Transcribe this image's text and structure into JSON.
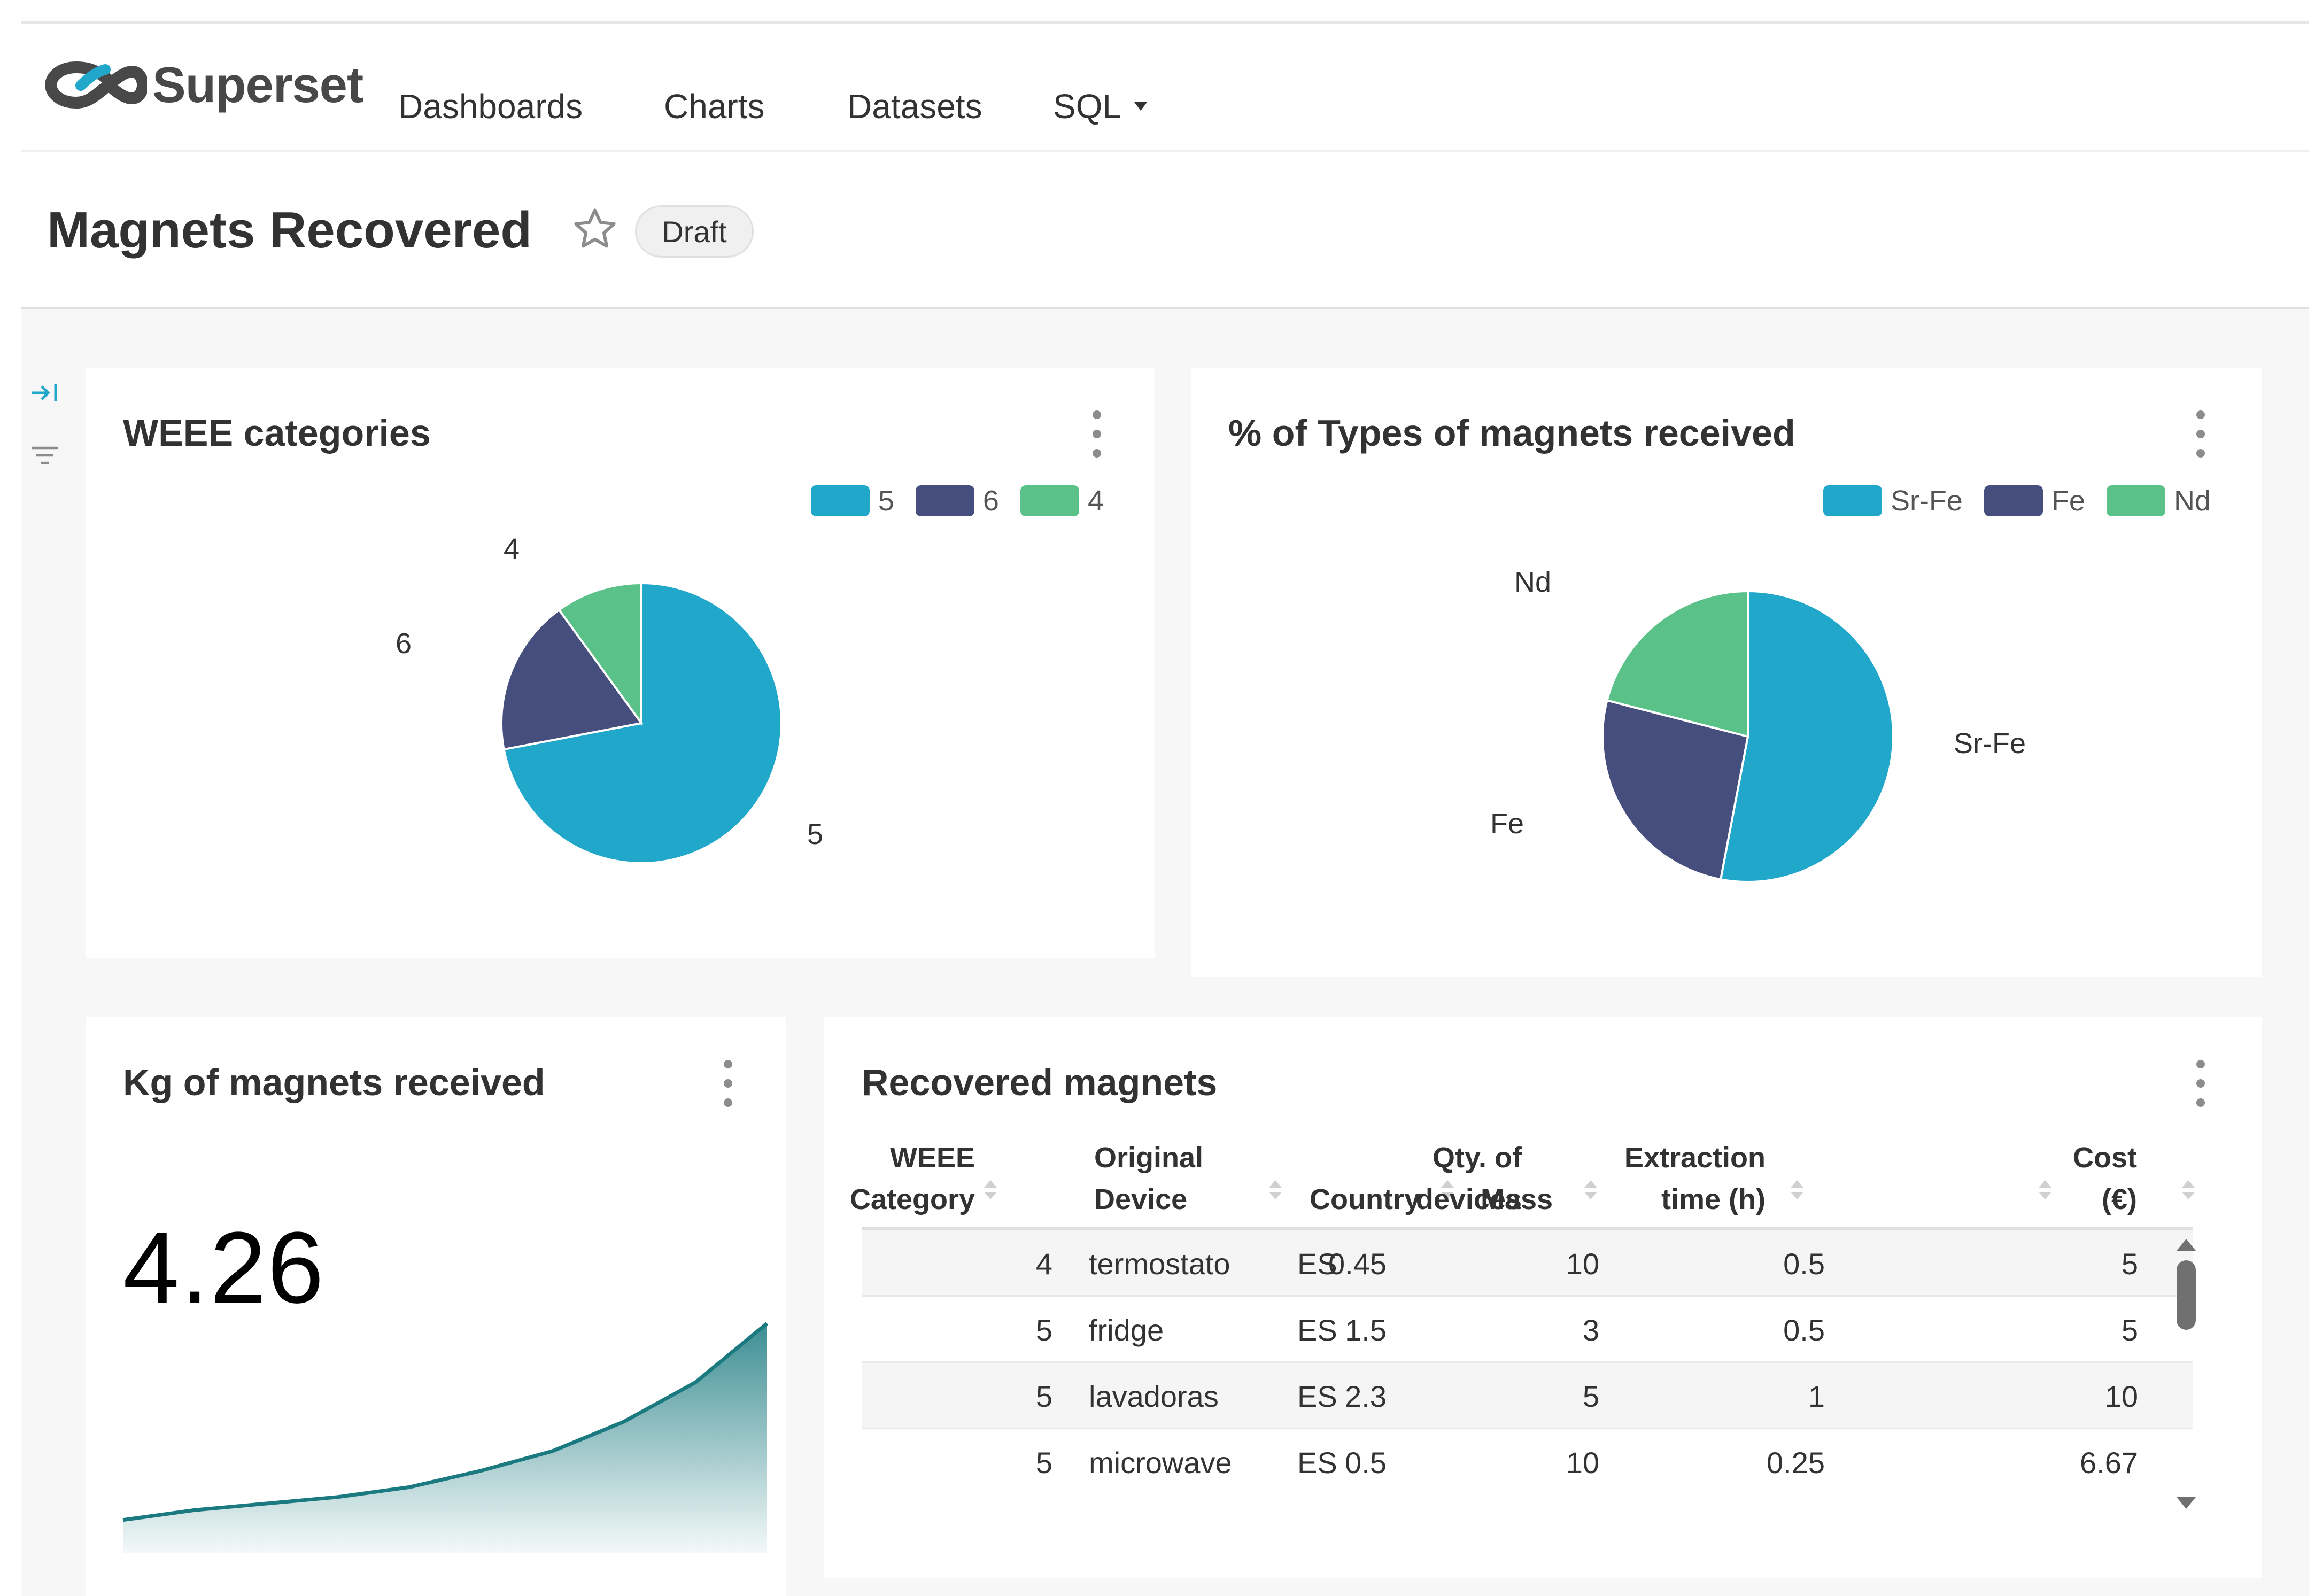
{
  "app": {
    "name": "Superset"
  },
  "nav": {
    "dashboards": "Dashboards",
    "charts": "Charts",
    "datasets": "Datasets",
    "sql": "SQL"
  },
  "dashboard": {
    "title": "Magnets Recovered",
    "status": "Draft"
  },
  "colors": {
    "teal": "#20a7c9",
    "navy": "#454e7c",
    "green": "#5ac189",
    "spark": "#1a7a80"
  },
  "charts": {
    "weee": {
      "title": "WEEE categories",
      "legend": [
        "5",
        "6",
        "4"
      ],
      "labels": {
        "a": "4",
        "b": "6",
        "c": "5"
      }
    },
    "types": {
      "title": "% of Types of magnets received",
      "legend": [
        "Sr-Fe",
        "Fe",
        "Nd"
      ],
      "labels": {
        "a": "Nd",
        "b": "Fe",
        "c": "Sr-Fe"
      }
    },
    "kg": {
      "title": "Kg of magnets received",
      "value": "4.26"
    },
    "table": {
      "title": "Recovered magnets",
      "headers": {
        "weee_1": "WEEE",
        "weee_2": "Category",
        "device_1": "Original",
        "device_2": "Device",
        "country": "Country",
        "mass": "Mass",
        "qty_1": "Qty. of",
        "qty_2": "devices",
        "time_1": "Extraction",
        "time_2": "time (h)",
        "cost_1": "Cost",
        "cost_2": "(€)"
      },
      "rows": [
        {
          "cat": "4",
          "device": "termostato",
          "country": "ES",
          "mass": "0.45",
          "qty": "10",
          "time": "0.5",
          "cost": "5"
        },
        {
          "cat": "5",
          "device": "fridge",
          "country": "ES",
          "mass": "1.5",
          "qty": "3",
          "time": "0.5",
          "cost": "5"
        },
        {
          "cat": "5",
          "device": "lavadoras",
          "country": "ES",
          "mass": "2.3",
          "qty": "5",
          "time": "1",
          "cost": "10"
        },
        {
          "cat": "5",
          "device": "microwave",
          "country": "ES",
          "mass": "0.5",
          "qty": "10",
          "time": "0.25",
          "cost": "6.67"
        }
      ]
    }
  },
  "chart_data": [
    {
      "type": "pie",
      "title": "WEEE categories",
      "categories": [
        "5",
        "6",
        "4"
      ],
      "values": [
        72,
        18,
        10
      ],
      "legend": "top-right"
    },
    {
      "type": "pie",
      "title": "% of Types of magnets received",
      "categories": [
        "Sr-Fe",
        "Fe",
        "Nd"
      ],
      "values": [
        53,
        26,
        21
      ],
      "legend": "top-right"
    },
    {
      "type": "area",
      "title": "Kg of magnets received",
      "x": [
        1,
        2,
        3,
        4,
        5,
        6,
        7,
        8,
        9,
        10
      ],
      "values": [
        0.1,
        0.13,
        0.15,
        0.17,
        0.2,
        0.25,
        0.31,
        0.4,
        0.52,
        0.7
      ]
    }
  ]
}
